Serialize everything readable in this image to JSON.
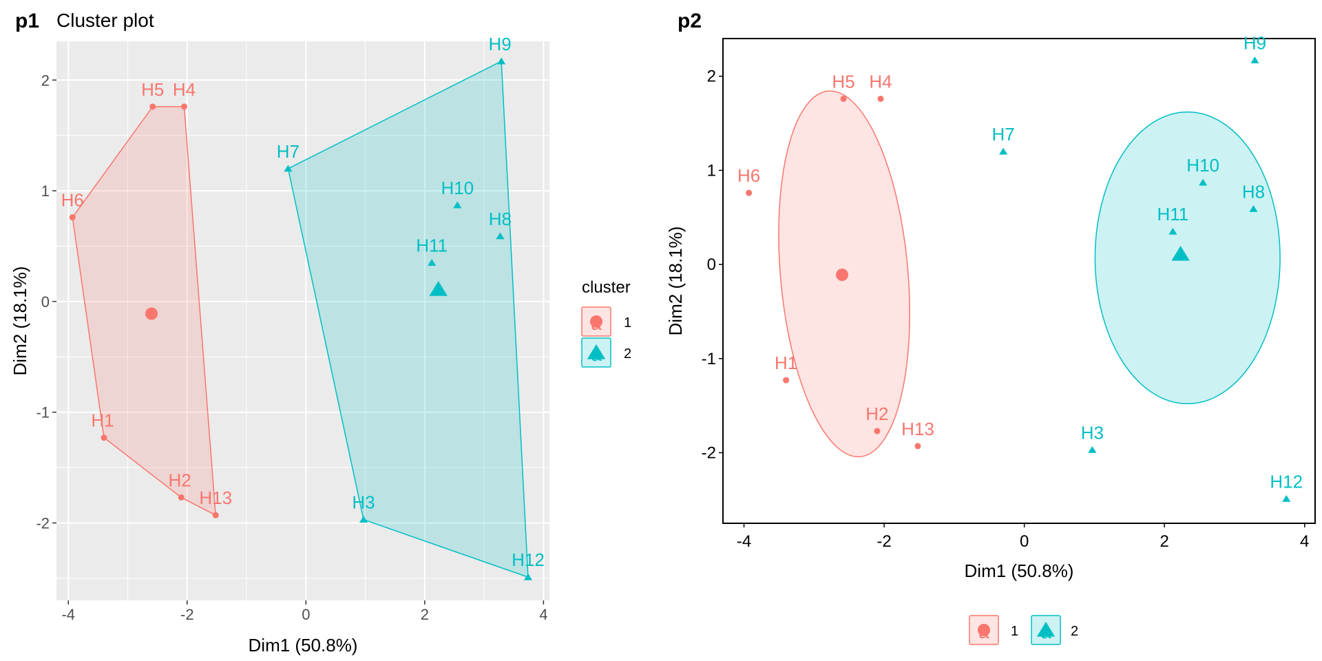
{
  "colors": {
    "cluster1": "#F8766D",
    "cluster2": "#00BFC4",
    "panel_bg": "#EBEBEB",
    "grid": "#FFFFFF"
  },
  "p1": {
    "tag": "p1",
    "title": "Cluster plot",
    "legend_title": "cluster"
  },
  "p2": {
    "tag": "p2"
  },
  "chart_data": [
    {
      "type": "scatter",
      "panel": "p1",
      "title": "Cluster plot",
      "xlabel": "Dim1 (50.8%)",
      "ylabel": "Dim2 (18.1%)",
      "xlim": [
        -4.2,
        4.1
      ],
      "ylim": [
        -2.7,
        2.35
      ],
      "xticks": [
        -4,
        -2,
        0,
        2,
        4
      ],
      "yticks": [
        -2,
        -1,
        0,
        1,
        2
      ],
      "grid": true,
      "legend": {
        "title": "cluster",
        "position": "right",
        "entries": [
          "1",
          "2"
        ]
      },
      "hull": "convex",
      "points": [
        {
          "label": "H1",
          "x": -3.4,
          "y": -1.23,
          "cluster": 1
        },
        {
          "label": "H2",
          "x": -2.1,
          "y": -1.77,
          "cluster": 1
        },
        {
          "label": "H4",
          "x": -2.05,
          "y": 1.76,
          "cluster": 1
        },
        {
          "label": "H5",
          "x": -2.58,
          "y": 1.76,
          "cluster": 1
        },
        {
          "label": "H6",
          "x": -3.93,
          "y": 0.76,
          "cluster": 1
        },
        {
          "label": "H13",
          "x": -1.52,
          "y": -1.93,
          "cluster": 1
        },
        {
          "label": "H3",
          "x": 0.97,
          "y": -1.97,
          "cluster": 2
        },
        {
          "label": "H7",
          "x": -0.3,
          "y": 1.2,
          "cluster": 2
        },
        {
          "label": "H8",
          "x": 3.27,
          "y": 0.59,
          "cluster": 2
        },
        {
          "label": "H9",
          "x": 3.29,
          "y": 2.17,
          "cluster": 2
        },
        {
          "label": "H10",
          "x": 2.55,
          "y": 0.87,
          "cluster": 2
        },
        {
          "label": "H11",
          "x": 2.12,
          "y": 0.35,
          "cluster": 2
        },
        {
          "label": "H12",
          "x": 3.74,
          "y": -2.49,
          "cluster": 2
        }
      ],
      "centers": [
        {
          "cluster": 1,
          "x": -2.6,
          "y": -0.11
        },
        {
          "cluster": 2,
          "x": 2.23,
          "y": 0.11
        }
      ]
    },
    {
      "type": "scatter",
      "panel": "p2",
      "title": "",
      "xlabel": "Dim1 (50.8%)",
      "ylabel": "Dim2 (18.1%)",
      "xlim": [
        -4.3,
        4.15
      ],
      "ylim": [
        -2.75,
        2.4
      ],
      "xticks": [
        -4,
        -2,
        0,
        2,
        4
      ],
      "yticks": [
        -2,
        -1,
        0,
        1,
        2
      ],
      "grid": false,
      "legend": {
        "title": "",
        "position": "bottom",
        "entries": [
          "1",
          "2"
        ]
      },
      "hull": "ellipse",
      "points": [
        {
          "label": "H1",
          "x": -3.4,
          "y": -1.23,
          "cluster": 1
        },
        {
          "label": "H2",
          "x": -2.1,
          "y": -1.77,
          "cluster": 1
        },
        {
          "label": "H4",
          "x": -2.05,
          "y": 1.76,
          "cluster": 1
        },
        {
          "label": "H5",
          "x": -2.58,
          "y": 1.76,
          "cluster": 1
        },
        {
          "label": "H6",
          "x": -3.93,
          "y": 0.76,
          "cluster": 1
        },
        {
          "label": "H13",
          "x": -1.52,
          "y": -1.93,
          "cluster": 1
        },
        {
          "label": "H3",
          "x": 0.97,
          "y": -1.97,
          "cluster": 2
        },
        {
          "label": "H7",
          "x": -0.3,
          "y": 1.2,
          "cluster": 2
        },
        {
          "label": "H8",
          "x": 3.27,
          "y": 0.59,
          "cluster": 2
        },
        {
          "label": "H9",
          "x": 3.29,
          "y": 2.17,
          "cluster": 2
        },
        {
          "label": "H10",
          "x": 2.55,
          "y": 0.87,
          "cluster": 2
        },
        {
          "label": "H11",
          "x": 2.12,
          "y": 0.35,
          "cluster": 2
        },
        {
          "label": "H12",
          "x": 3.74,
          "y": -2.49,
          "cluster": 2
        }
      ],
      "centers": [
        {
          "cluster": 1,
          "x": -2.6,
          "y": -0.11
        },
        {
          "cluster": 2,
          "x": 2.23,
          "y": 0.11
        }
      ],
      "ellipses": [
        {
          "cluster": 1,
          "cx": -2.57,
          "cy": -0.1,
          "rx_data": 0.91,
          "ry_data": 1.95,
          "angle_deg": -5
        },
        {
          "cluster": 2,
          "cx": 2.33,
          "cy": 0.07,
          "rx_data": 1.32,
          "ry_data": 1.55,
          "angle_deg": 0
        }
      ]
    }
  ]
}
